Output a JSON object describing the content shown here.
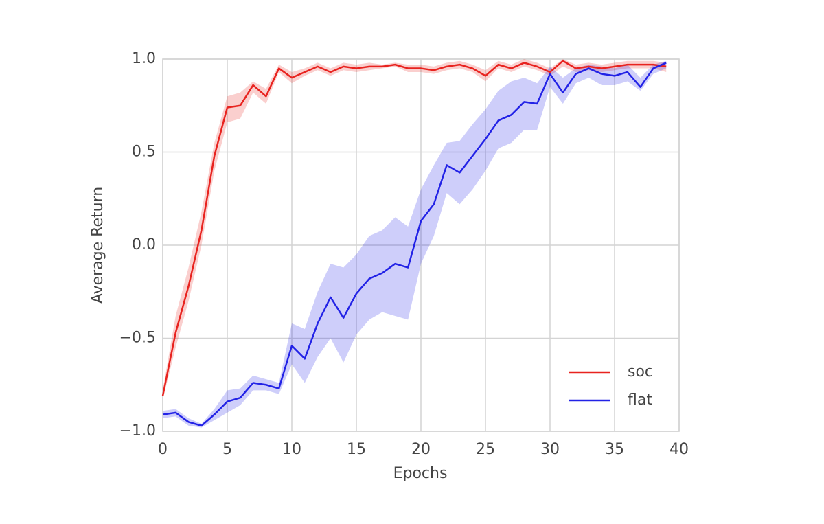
{
  "chart_data": {
    "type": "line",
    "x_label": "Epochs",
    "y_label": "Average Return",
    "x": [
      0,
      1,
      2,
      3,
      4,
      5,
      6,
      7,
      8,
      9,
      10,
      11,
      12,
      13,
      14,
      15,
      16,
      17,
      18,
      19,
      20,
      21,
      22,
      23,
      24,
      25,
      26,
      27,
      28,
      29,
      30,
      31,
      32,
      33,
      34,
      35,
      36,
      37,
      38,
      39
    ],
    "xlim": [
      0,
      40
    ],
    "xticks": [
      0,
      5,
      10,
      15,
      20,
      25,
      30,
      35,
      40
    ],
    "ylim": [
      -1,
      1
    ],
    "yticks": [
      {
        "value": -1,
        "label": "−1.0"
      },
      {
        "value": -0.5,
        "label": "−0.5"
      },
      {
        "value": 0,
        "label": "0.0"
      },
      {
        "value": 0.5,
        "label": "0.5"
      },
      {
        "value": 1,
        "label": "1.0"
      }
    ],
    "grid": true,
    "legend": "lower right",
    "series": [
      {
        "name": "soc",
        "color": "#e8231f",
        "values": [
          -0.81,
          -0.47,
          -0.22,
          0.08,
          0.48,
          0.74,
          0.75,
          0.86,
          0.8,
          0.95,
          0.9,
          0.93,
          0.96,
          0.93,
          0.96,
          0.95,
          0.96,
          0.96,
          0.97,
          0.95,
          0.95,
          0.94,
          0.96,
          0.97,
          0.95,
          0.91,
          0.97,
          0.95,
          0.98,
          0.96,
          0.93,
          0.99,
          0.95,
          0.96,
          0.95,
          0.96,
          0.97,
          0.97,
          0.97,
          0.96
        ],
        "lower": [
          -0.83,
          -0.55,
          -0.3,
          0.0,
          0.4,
          0.66,
          0.68,
          0.82,
          0.76,
          0.93,
          0.87,
          0.91,
          0.94,
          0.91,
          0.94,
          0.93,
          0.94,
          0.95,
          0.96,
          0.93,
          0.93,
          0.92,
          0.94,
          0.95,
          0.93,
          0.88,
          0.95,
          0.93,
          0.96,
          0.94,
          0.91,
          0.96,
          0.93,
          0.94,
          0.93,
          0.94,
          0.95,
          0.95,
          0.95,
          0.93
        ],
        "upper": [
          -0.78,
          -0.38,
          -0.12,
          0.18,
          0.55,
          0.8,
          0.82,
          0.88,
          0.84,
          0.97,
          0.93,
          0.95,
          0.98,
          0.95,
          0.98,
          0.97,
          0.98,
          0.97,
          0.98,
          0.97,
          0.97,
          0.96,
          0.98,
          0.99,
          0.97,
          0.94,
          0.99,
          0.97,
          1.0,
          0.98,
          0.95,
          1.0,
          0.97,
          0.98,
          0.97,
          0.98,
          0.99,
          0.99,
          0.99,
          0.98
        ]
      },
      {
        "name": "flat",
        "color": "#2222e6",
        "values": [
          -0.91,
          -0.9,
          -0.95,
          -0.97,
          -0.91,
          -0.84,
          -0.82,
          -0.74,
          -0.75,
          -0.77,
          -0.54,
          -0.61,
          -0.42,
          -0.28,
          -0.39,
          -0.26,
          -0.18,
          -0.15,
          -0.1,
          -0.12,
          0.13,
          0.22,
          0.43,
          0.39,
          0.48,
          0.57,
          0.67,
          0.7,
          0.77,
          0.76,
          0.92,
          0.82,
          0.92,
          0.95,
          0.92,
          0.91,
          0.93,
          0.85,
          0.95,
          0.98
        ],
        "lower": [
          -0.93,
          -0.92,
          -0.97,
          -0.98,
          -0.94,
          -0.9,
          -0.86,
          -0.78,
          -0.78,
          -0.8,
          -0.64,
          -0.74,
          -0.6,
          -0.5,
          -0.63,
          -0.48,
          -0.4,
          -0.36,
          -0.38,
          -0.4,
          -0.1,
          0.05,
          0.28,
          0.22,
          0.3,
          0.4,
          0.52,
          0.55,
          0.62,
          0.62,
          0.85,
          0.76,
          0.87,
          0.9,
          0.86,
          0.86,
          0.88,
          0.83,
          0.92,
          0.95
        ],
        "upper": [
          -0.89,
          -0.88,
          -0.93,
          -0.96,
          -0.88,
          -0.78,
          -0.77,
          -0.7,
          -0.72,
          -0.74,
          -0.42,
          -0.45,
          -0.25,
          -0.1,
          -0.12,
          -0.05,
          0.05,
          0.08,
          0.15,
          0.1,
          0.3,
          0.43,
          0.55,
          0.56,
          0.65,
          0.73,
          0.83,
          0.88,
          0.9,
          0.87,
          0.96,
          0.9,
          0.95,
          0.97,
          0.96,
          0.95,
          0.97,
          0.9,
          0.97,
          0.99
        ]
      }
    ]
  }
}
